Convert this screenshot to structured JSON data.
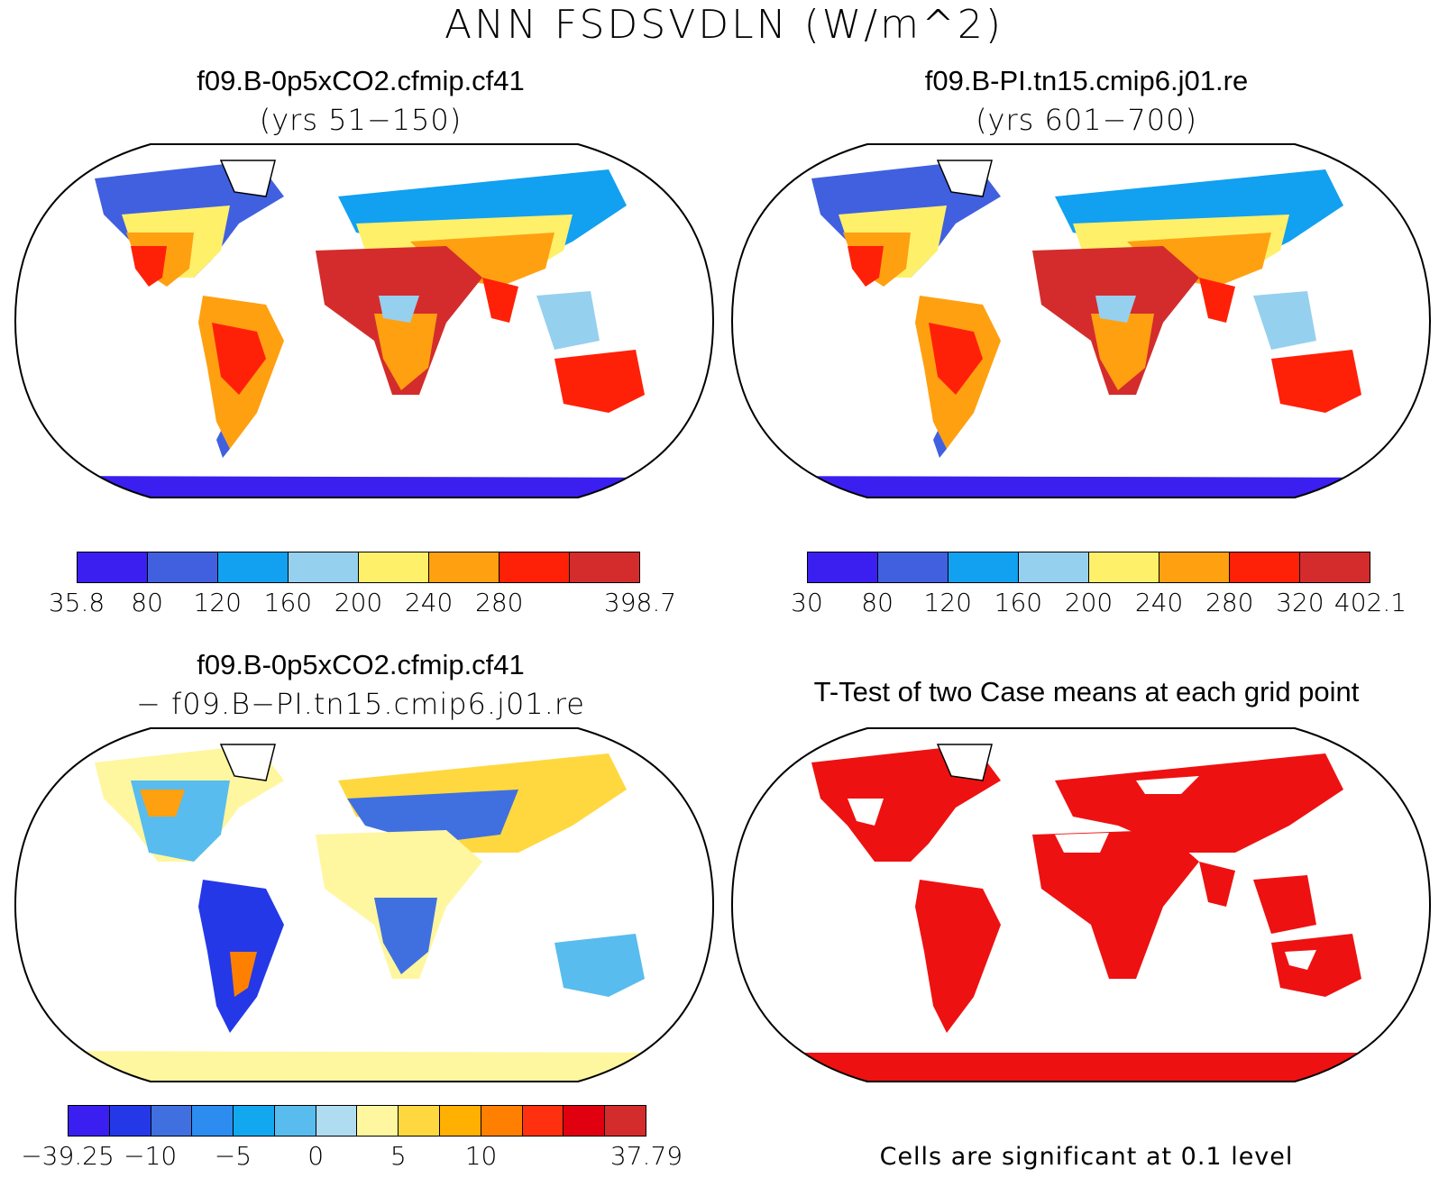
{
  "title": "ANN FSDSVDLN (W/m^2)",
  "panels": [
    {
      "title": "f09.B-0p5xCO2.cfmip.cf41",
      "subtitle": "(yrs 51−150)",
      "colorbar": {
        "colors": [
          "#3a1ff0",
          "#4060e0",
          "#12a0f0",
          "#96d0ef",
          "#fff06a",
          "#ffa010",
          "#ff2008",
          "#d42c2c"
        ],
        "labels": [
          "35.8",
          "80",
          "120",
          "160",
          "200",
          "240",
          "280",
          "",
          "398.7"
        ]
      }
    },
    {
      "title": "f09.B-PI.tn15.cmip6.j01.re",
      "subtitle": "(yrs 601−700)",
      "colorbar": {
        "colors": [
          "#3a1ff0",
          "#4060e0",
          "#12a0f0",
          "#96d0ef",
          "#fff06a",
          "#ffa010",
          "#ff2008",
          "#d42c2c"
        ],
        "labels": [
          "30",
          "80",
          "120",
          "160",
          "200",
          "240",
          "280",
          "320",
          "402.1"
        ]
      }
    },
    {
      "title": "f09.B-0p5xCO2.cfmip.cf41",
      "subtitle": "− f09.B−PI.tn15.cmip6.j01.re",
      "colorbar": {
        "colors": [
          "#3a1ff0",
          "#2438e8",
          "#4070e0",
          "#2c8cf0",
          "#12a8f0",
          "#58bcee",
          "#b0dcf2",
          "#fff6a0",
          "#ffd840",
          "#ffb000",
          "#ff8000",
          "#ff3010",
          "#e00010",
          "#d42c2c"
        ],
        "labels": [
          "−39.25",
          "",
          "−10",
          "",
          "−5",
          "",
          "0",
          "",
          "5",
          "",
          "10",
          "",
          "",
          "",
          "37.79"
        ]
      }
    },
    {
      "title": "T-Test of two Case means at each grid point",
      "note": "Cells are significant at 0.1 level",
      "significant_color": "#ee1111"
    }
  ]
}
